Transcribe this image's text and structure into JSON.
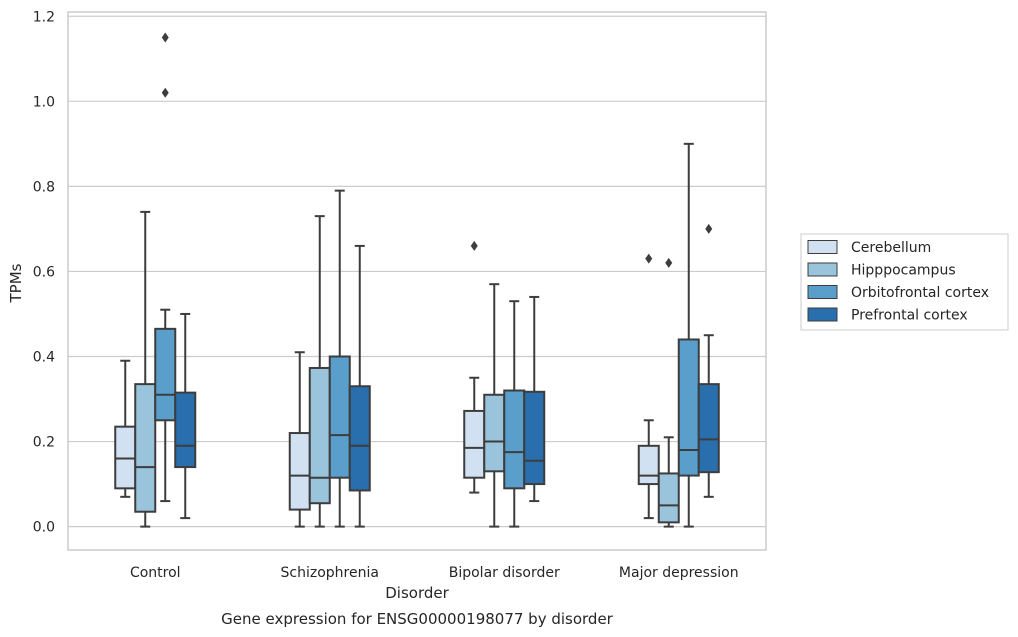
{
  "chart_data": {
    "type": "box",
    "xlabel": "Disorder",
    "ylabel": "TPMs",
    "caption": "Gene expression for ENSG00000198077 by disorder",
    "ylim": [
      -0.055,
      1.21
    ],
    "yticks": [
      "0.0",
      "0.2",
      "0.4",
      "0.6",
      "0.8",
      "1.0",
      "1.2"
    ],
    "grid": "horizontal",
    "legend_position": "right",
    "categories": [
      "Control",
      "Schizophrenia",
      "Bipolar disorder",
      "Major depression"
    ],
    "series": [
      {
        "name": "Cerebellum",
        "color": "#d1e1f1",
        "boxes": [
          {
            "whislo": 0.07,
            "q1": 0.09,
            "med": 0.16,
            "q3": 0.235,
            "whishi": 0.39,
            "fliers": []
          },
          {
            "whislo": 0.0,
            "q1": 0.04,
            "med": 0.12,
            "q3": 0.22,
            "whishi": 0.41,
            "fliers": []
          },
          {
            "whislo": 0.08,
            "q1": 0.115,
            "med": 0.185,
            "q3": 0.272,
            "whishi": 0.35,
            "fliers": [
              0.66
            ]
          },
          {
            "whislo": 0.02,
            "q1": 0.1,
            "med": 0.12,
            "q3": 0.19,
            "whishi": 0.25,
            "fliers": [
              0.63
            ]
          }
        ]
      },
      {
        "name": "Hipppocampus",
        "color": "#9ac4dc",
        "boxes": [
          {
            "whislo": 0.0,
            "q1": 0.035,
            "med": 0.14,
            "q3": 0.335,
            "whishi": 0.74,
            "fliers": []
          },
          {
            "whislo": 0.0,
            "q1": 0.055,
            "med": 0.115,
            "q3": 0.373,
            "whishi": 0.73,
            "fliers": []
          },
          {
            "whislo": 0.0,
            "q1": 0.13,
            "med": 0.2,
            "q3": 0.31,
            "whishi": 0.57,
            "fliers": []
          },
          {
            "whislo": 0.0,
            "q1": 0.01,
            "med": 0.05,
            "q3": 0.125,
            "whishi": 0.21,
            "fliers": [
              0.62
            ]
          }
        ]
      },
      {
        "name": "Orbitofrontal cortex",
        "color": "#5a9fcc",
        "boxes": [
          {
            "whislo": 0.06,
            "q1": 0.25,
            "med": 0.31,
            "q3": 0.465,
            "whishi": 0.51,
            "fliers": [
              1.02,
              1.15
            ]
          },
          {
            "whislo": 0.0,
            "q1": 0.115,
            "med": 0.215,
            "q3": 0.4,
            "whishi": 0.79,
            "fliers": []
          },
          {
            "whislo": 0.0,
            "q1": 0.09,
            "med": 0.175,
            "q3": 0.32,
            "whishi": 0.53,
            "fliers": []
          },
          {
            "whislo": 0.0,
            "q1": 0.12,
            "med": 0.18,
            "q3": 0.44,
            "whishi": 0.9,
            "fliers": []
          }
        ]
      },
      {
        "name": "Prefrontal cortex",
        "color": "#2a6fad",
        "boxes": [
          {
            "whislo": 0.02,
            "q1": 0.14,
            "med": 0.19,
            "q3": 0.315,
            "whishi": 0.5,
            "fliers": []
          },
          {
            "whislo": 0.0,
            "q1": 0.085,
            "med": 0.19,
            "q3": 0.33,
            "whishi": 0.66,
            "fliers": []
          },
          {
            "whislo": 0.06,
            "q1": 0.1,
            "med": 0.155,
            "q3": 0.317,
            "whishi": 0.54,
            "fliers": []
          },
          {
            "whislo": 0.07,
            "q1": 0.128,
            "med": 0.205,
            "q3": 0.335,
            "whishi": 0.45,
            "fliers": [
              0.7
            ]
          }
        ]
      }
    ]
  }
}
